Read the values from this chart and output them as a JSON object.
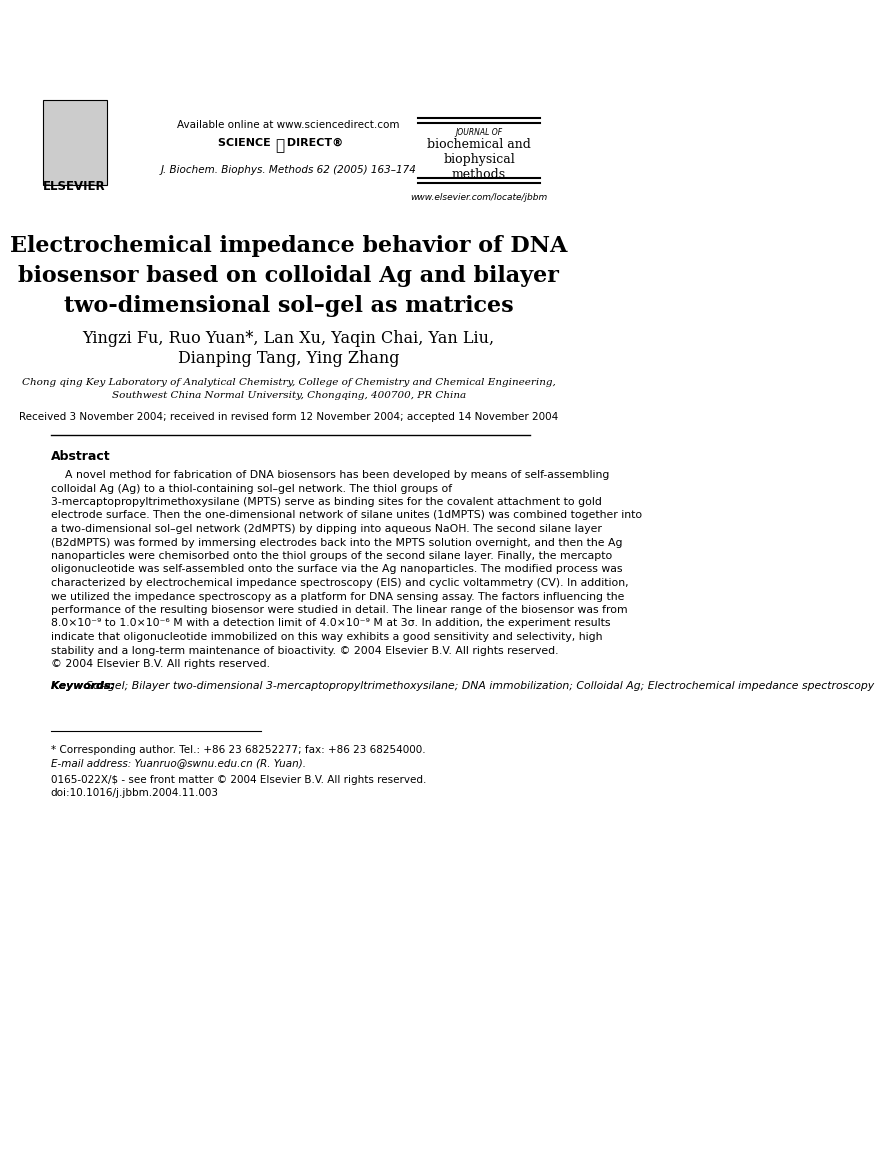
{
  "bg_color": "#ffffff",
  "header": {
    "elsevier_text": "ELSEVIER",
    "available_online": "Available online at www.sciencedirect.com",
    "science_direct": "SCIENCE ⓐ DIRECT®",
    "journal_label": "JOURNAL OF",
    "journal_name_lines": [
      "biochemical and",
      "biophysical",
      "methods"
    ],
    "journal_citation": "J. Biochem. Biophys. Methods 62 (2005) 163–174",
    "website": "www.elsevier.com/locate/jbbm"
  },
  "title_lines": [
    "Electrochemical impedance behavior of DNA",
    "biosensor based on colloidal Ag and bilayer",
    "two-dimensional sol–gel as matrices"
  ],
  "authors_line1": "Yingzi Fu, Ruo Yuan*, Lan Xu, Yaqin Chai, Yan Liu,",
  "authors_line2": "Dianping Tang, Ying Zhang",
  "affiliation_line1": "Chong qing Key Laboratory of Analytical Chemistry, College of Chemistry and Chemical Engineering,",
  "affiliation_line2": "Southwest China Normal University, Chongqing, 400700, PR China",
  "received": "Received 3 November 2004; received in revised form 12 November 2004; accepted 14 November 2004",
  "abstract_title": "Abstract",
  "abstract_text": "    A novel method for fabrication of DNA biosensors has been developed by means of self-assembling colloidal Ag (Ag) to a thiol-containing sol–gel network. The thiol groups of 3-mercaptopropyltrimethoxysilane (MPTS) serve as binding sites for the covalent attachment to gold electrode surface. Then the one-dimensional network of silane unites (1dMPTS) was combined together into a two-dimensional sol–gel network (2dMPTS) by dipping into aqueous NaOH. The second silane layer (B2dMPTS) was formed by immersing electrodes back into the MPTS solution overnight, and then the Ag nanoparticles were chemisorbed onto the thiol groups of the second silane layer. Finally, the mercapto oligonucleotide was self-assembled onto the surface via the Ag nanoparticles. The modified process was characterized by electrochemical impedance spectroscopy (EIS) and cyclic voltammetry (CV). In addition, we utilized the impedance spectroscopy as a platform for DNA sensing assay. The factors influencing the performance of the resulting biosensor were studied in detail. The linear range of the biosensor was from 8.0×10⁻⁹ to 1.0×10⁻⁶ M with a detection limit of 4.0×10⁻⁹ M at 3σ. In addition, the experiment results indicate that oligonucleotide immobilized on this way exhibits a good sensitivity and selectivity, high stability and a long-term maintenance of bioactivity.\n© 2004 Elsevier B.V. All rights reserved.",
  "keywords_title": "Keywords:",
  "keywords_text": "Sol–gel; Bilayer two-dimensional 3-mercaptopropyltrimethoxysilane; DNA immobilization; Colloidal Ag; Electrochemical impedance spectroscopy",
  "footer_line1": "* Corresponding author. Tel.: +86 23 68252277; fax: +86 23 68254000.",
  "footer_line2": "E-mail address: Yuanruo@swnu.edu.cn (R. Yuan).",
  "footer_line3": "0165-022X/$ - see front matter © 2004 Elsevier B.V. All rights reserved.",
  "footer_line4": "doi:10.1016/j.jbbm.2004.11.003"
}
